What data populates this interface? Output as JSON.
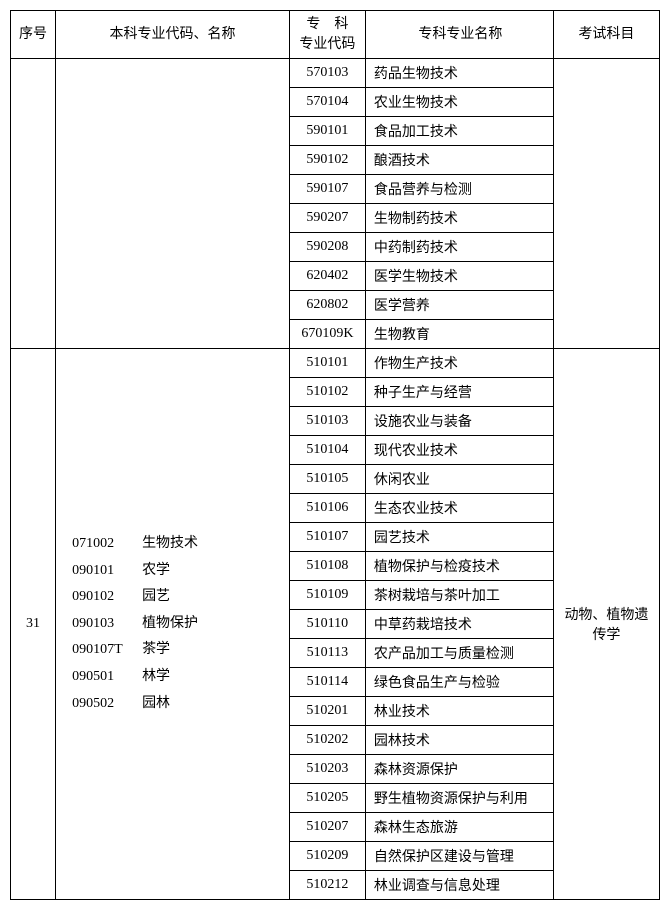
{
  "headers": {
    "seq": "序号",
    "major": "本科专业代码、名称",
    "spcode": "专　科\n专业代码",
    "spname": "专科专业名称",
    "exam": "考试科目"
  },
  "group1": {
    "seq": "",
    "major": "",
    "exam": "",
    "rows": [
      {
        "code": "570103",
        "name": "药品生物技术"
      },
      {
        "code": "570104",
        "name": "农业生物技术"
      },
      {
        "code": "590101",
        "name": "食品加工技术"
      },
      {
        "code": "590102",
        "name": "酿酒技术"
      },
      {
        "code": "590107",
        "name": "食品营养与检测"
      },
      {
        "code": "590207",
        "name": "生物制药技术"
      },
      {
        "code": "590208",
        "name": "中药制药技术"
      },
      {
        "code": "620402",
        "name": "医学生物技术"
      },
      {
        "code": "620802",
        "name": "医学营养"
      },
      {
        "code": "670109K",
        "name": "生物教育"
      }
    ]
  },
  "group2": {
    "seq": "31",
    "majors": [
      {
        "code": "071002",
        "name": "生物技术"
      },
      {
        "code": "090101",
        "name": "农学"
      },
      {
        "code": "090102",
        "name": "园艺"
      },
      {
        "code": "090103",
        "name": "植物保护"
      },
      {
        "code": "090107T",
        "name": "茶学"
      },
      {
        "code": "090501",
        "name": "林学"
      },
      {
        "code": "090502",
        "name": "园林"
      }
    ],
    "exam": "动物、植物遗传学",
    "rows": [
      {
        "code": "510101",
        "name": "作物生产技术"
      },
      {
        "code": "510102",
        "name": "种子生产与经营"
      },
      {
        "code": "510103",
        "name": "设施农业与装备"
      },
      {
        "code": "510104",
        "name": "现代农业技术"
      },
      {
        "code": "510105",
        "name": "休闲农业"
      },
      {
        "code": "510106",
        "name": "生态农业技术"
      },
      {
        "code": "510107",
        "name": "园艺技术"
      },
      {
        "code": "510108",
        "name": "植物保护与检疫技术"
      },
      {
        "code": "510109",
        "name": "茶树栽培与茶叶加工"
      },
      {
        "code": "510110",
        "name": "中草药栽培技术"
      },
      {
        "code": "510113",
        "name": "农产品加工与质量检测"
      },
      {
        "code": "510114",
        "name": "绿色食品生产与检验"
      },
      {
        "code": "510201",
        "name": "林业技术"
      },
      {
        "code": "510202",
        "name": "园林技术"
      },
      {
        "code": "510203",
        "name": "森林资源保护"
      },
      {
        "code": "510205",
        "name": "野生植物资源保护与利用"
      },
      {
        "code": "510207",
        "name": "森林生态旅游"
      },
      {
        "code": "510209",
        "name": "自然保护区建设与管理"
      },
      {
        "code": "510212",
        "name": "林业调查与信息处理"
      }
    ]
  }
}
